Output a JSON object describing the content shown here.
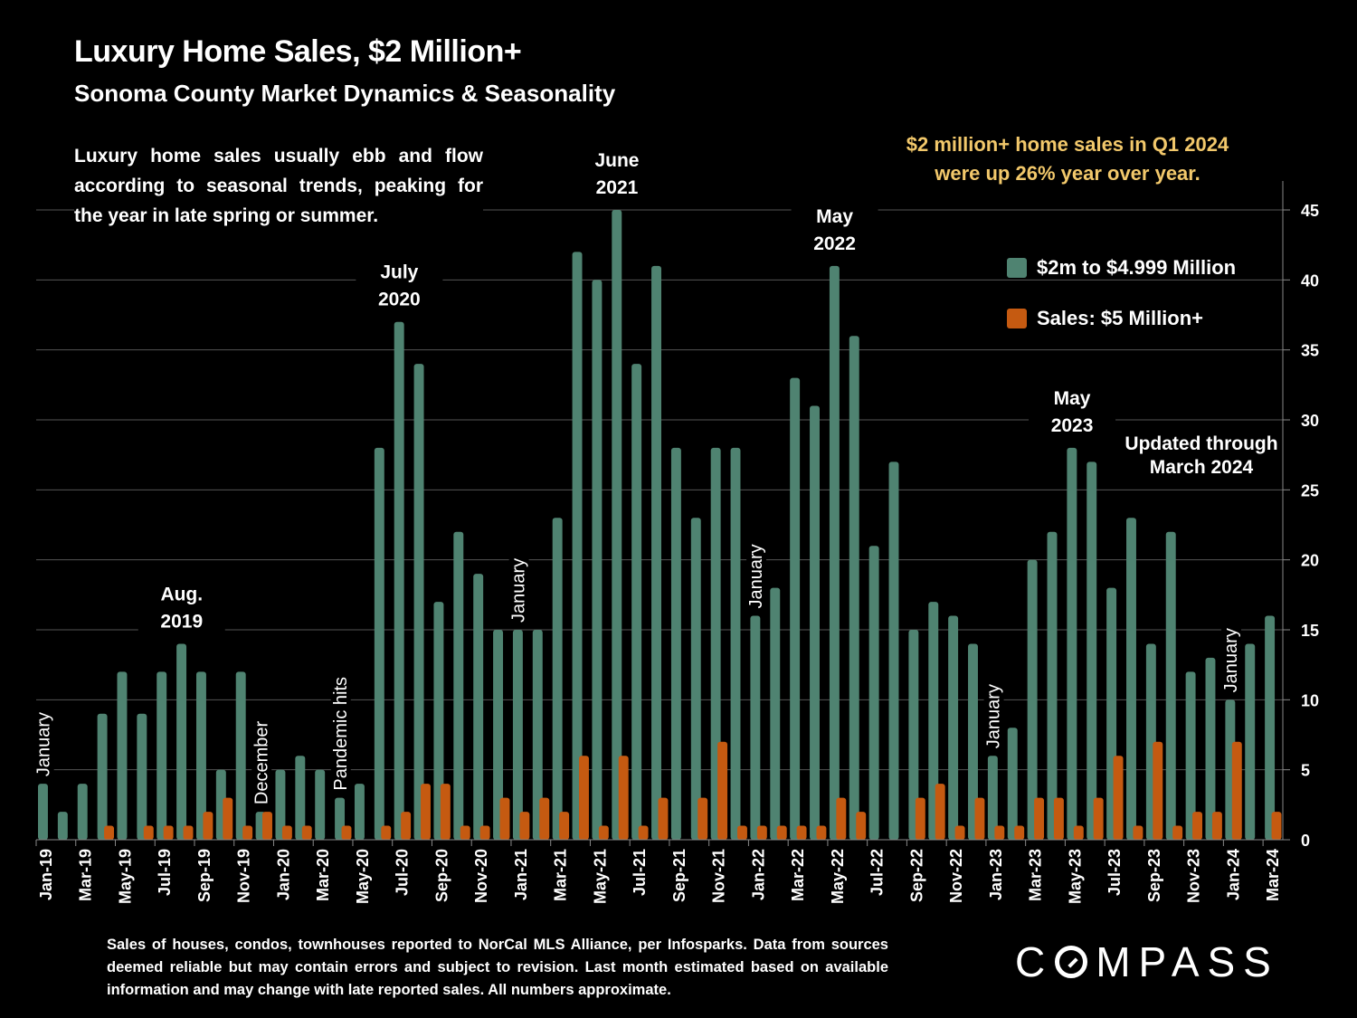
{
  "header": {
    "title": "Luxury Home Sales, $2 Million+",
    "subtitle": "Sonoma County Market Dynamics & Seasonality"
  },
  "intro_text": "Luxury home sales usually ebb and flow according to seasonal trends, peaking for the year in late spring or summer.",
  "highlight": {
    "line1": "$2 million+ home sales in Q1 2024",
    "line2": "were up 26% year over year.",
    "color": "#F2C86B"
  },
  "footnote": "Sales of houses, condos, townhouses reported to NorCal MLS Alliance, per Infosparks. Data from sources deemed reliable but may contain errors and subject to revision. Last month estimated based on available information and may change with late reported sales. All numbers approximate.",
  "logo": {
    "before": "C",
    "after": "MPASS",
    "icon": "compass-o-icon"
  },
  "chart_data": {
    "type": "bar",
    "title": "Luxury Home Sales, $2 Million+",
    "subtitle": "Sonoma County Market Dynamics & Seasonality",
    "xlabel": "",
    "ylabel": "",
    "ylim": [
      0,
      45
    ],
    "yticks": [
      0,
      5,
      10,
      15,
      20,
      25,
      30,
      35,
      40,
      45
    ],
    "y_axis_side": "right",
    "grid": true,
    "legend_position": "top-right",
    "categories": [
      "Jan-19",
      "Feb-19",
      "Mar-19",
      "Apr-19",
      "May-19",
      "Jun-19",
      "Jul-19",
      "Aug-19",
      "Sep-19",
      "Oct-19",
      "Nov-19",
      "Dec-19",
      "Jan-20",
      "Feb-20",
      "Mar-20",
      "Apr-20",
      "May-20",
      "Jun-20",
      "Jul-20",
      "Aug-20",
      "Sep-20",
      "Oct-20",
      "Nov-20",
      "Dec-20",
      "Jan-21",
      "Feb-21",
      "Mar-21",
      "Apr-21",
      "May-21",
      "Jun-21",
      "Jul-21",
      "Aug-21",
      "Sep-21",
      "Oct-21",
      "Nov-21",
      "Dec-21",
      "Jan-22",
      "Feb-22",
      "Mar-22",
      "Apr-22",
      "May-22",
      "Jun-22",
      "Jul-22",
      "Aug-22",
      "Sep-22",
      "Oct-22",
      "Nov-22",
      "Dec-22",
      "Jan-23",
      "Feb-23",
      "Mar-23",
      "Apr-23",
      "May-23",
      "Jun-23",
      "Jul-23",
      "Aug-23",
      "Sep-23",
      "Oct-23",
      "Nov-23",
      "Dec-23",
      "Jan-24",
      "Feb-24",
      "Mar-24"
    ],
    "xtick_labels_every": 2,
    "series": [
      {
        "name": "$2m to $4.999 Million",
        "color": "#4F8371",
        "values": [
          4,
          2,
          4,
          9,
          12,
          9,
          12,
          14,
          12,
          5,
          12,
          2,
          5,
          6,
          5,
          3,
          4,
          28,
          37,
          34,
          17,
          22,
          19,
          15,
          15,
          15,
          23,
          42,
          40,
          45,
          34,
          41,
          28,
          23,
          28,
          28,
          16,
          18,
          33,
          31,
          41,
          36,
          21,
          27,
          15,
          17,
          16,
          14,
          6,
          8,
          20,
          22,
          28,
          27,
          18,
          23,
          14,
          22,
          12,
          13,
          10,
          14,
          16
        ]
      },
      {
        "name": "Sales:  $5 Million+",
        "color": "#C55A11",
        "values": [
          0,
          0,
          0,
          1,
          0,
          1,
          1,
          1,
          2,
          3,
          1,
          2,
          1,
          1,
          0,
          1,
          0,
          1,
          2,
          4,
          4,
          1,
          1,
          3,
          2,
          3,
          2,
          6,
          1,
          6,
          1,
          3,
          0,
          3,
          7,
          1,
          1,
          1,
          1,
          1,
          3,
          2,
          0,
          0,
          3,
          4,
          1,
          3,
          1,
          1,
          3,
          3,
          1,
          3,
          6,
          1,
          7,
          1,
          2,
          2,
          7,
          0,
          2
        ]
      }
    ],
    "annotations": [
      {
        "text": [
          "Aug.",
          "2019"
        ],
        "index": 7,
        "rotated": false,
        "value": 14
      },
      {
        "text": [
          "July",
          "2020"
        ],
        "index": 18,
        "rotated": false,
        "value": 37
      },
      {
        "text": [
          "June",
          "2021"
        ],
        "index": 29,
        "rotated": false,
        "value": 45
      },
      {
        "text": [
          "May",
          "2022"
        ],
        "index": 40,
        "rotated": false,
        "value": 41
      },
      {
        "text": [
          "May",
          "2023"
        ],
        "index": 52,
        "rotated": false,
        "value": 28
      },
      {
        "text": [
          "January"
        ],
        "index": 0,
        "rotated": true,
        "value": 4
      },
      {
        "text": [
          "December"
        ],
        "index": 11,
        "rotated": true,
        "value": 2
      },
      {
        "text": [
          "Pandemic hits"
        ],
        "index": 15,
        "rotated": true,
        "value": 3
      },
      {
        "text": [
          "January"
        ],
        "index": 24,
        "rotated": true,
        "value": 15
      },
      {
        "text": [
          "January"
        ],
        "index": 36,
        "rotated": true,
        "value": 16
      },
      {
        "text": [
          "January"
        ],
        "index": 48,
        "rotated": true,
        "value": 6
      },
      {
        "text": [
          "January"
        ],
        "index": 60,
        "rotated": true,
        "value": 10
      },
      {
        "text": [
          "Updated through",
          "March 2024"
        ],
        "index": 57,
        "rotated": false,
        "value": 28,
        "free": true
      }
    ]
  }
}
